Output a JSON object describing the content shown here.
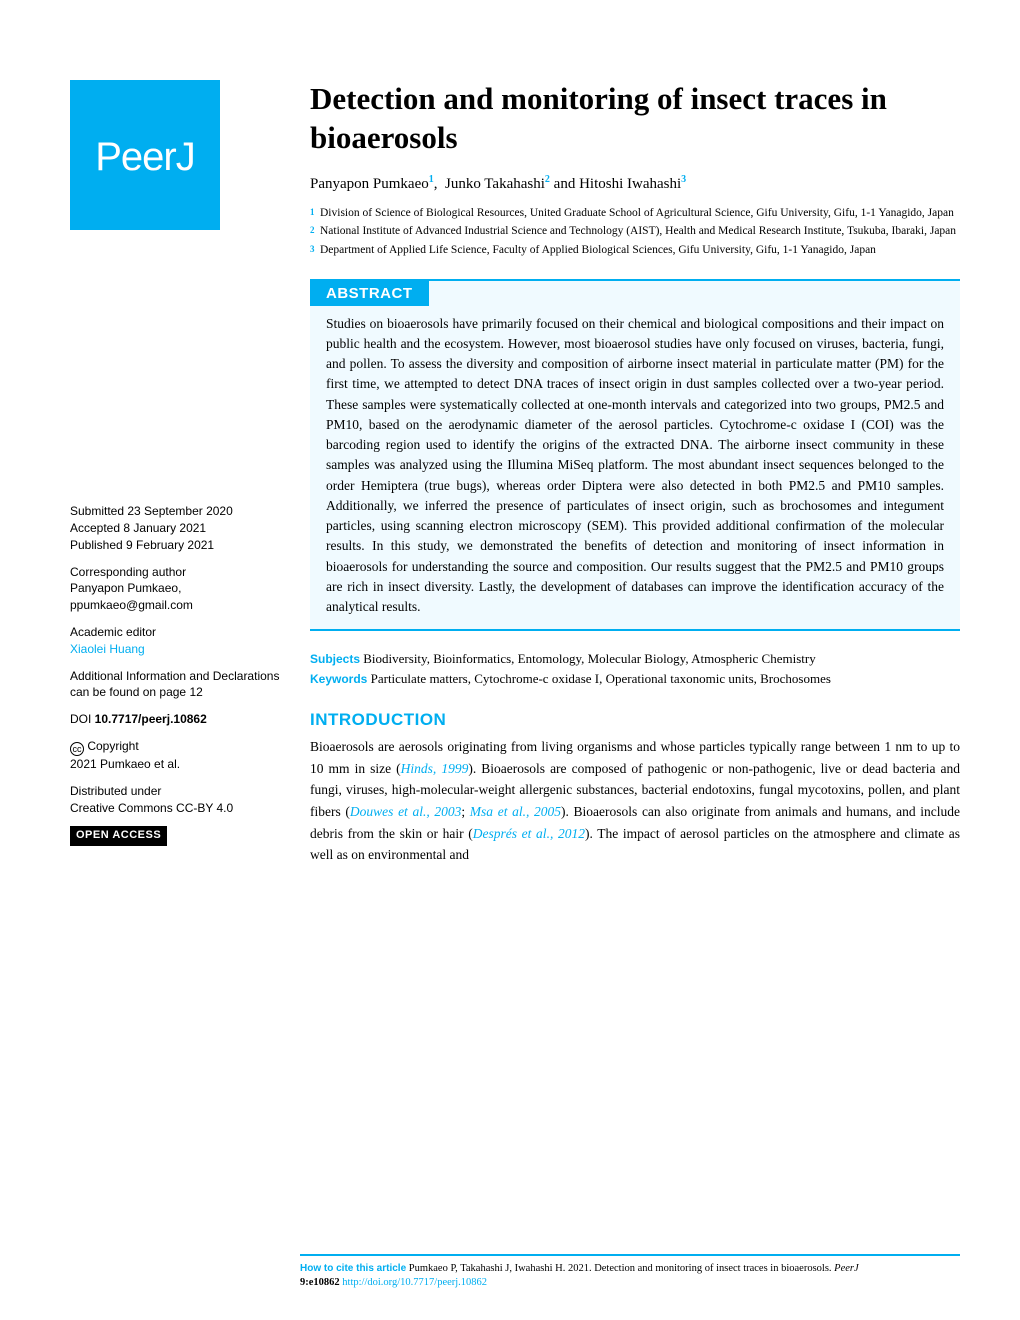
{
  "logo": "PeerJ",
  "title": "Detection and monitoring of insect traces in bioaerosols",
  "authors": [
    {
      "name": "Panyapon Pumkaeo",
      "sup": "1"
    },
    {
      "name": "Junko Takahashi",
      "sup": "2"
    },
    {
      "name": "Hitoshi Iwahashi",
      "sup": "3"
    }
  ],
  "affiliations": [
    {
      "num": "1",
      "text": "Division of Science of Biological Resources, United Graduate School of Agricultural Science, Gifu University, Gifu, 1-1 Yanagido, Japan"
    },
    {
      "num": "2",
      "text": "National Institute of Advanced Industrial Science and Technology (AIST), Health and Medical Research Institute, Tsukuba, Ibaraki, Japan"
    },
    {
      "num": "3",
      "text": "Department of Applied Life Science, Faculty of Applied Biological Sciences, Gifu University, Gifu, 1-1 Yanagido, Japan"
    }
  ],
  "abstract": {
    "header": "ABSTRACT",
    "text": "Studies on bioaerosols have primarily focused on their chemical and biological compositions and their impact on public health and the ecosystem. However, most bioaerosol studies have only focused on viruses, bacteria, fungi, and pollen. To assess the diversity and composition of airborne insect material in particulate matter (PM) for the first time, we attempted to detect DNA traces of insect origin in dust samples collected over a two-year period. These samples were systematically collected at one-month intervals and categorized into two groups, PM2.5 and PM10, based on the aerodynamic diameter of the aerosol particles. Cytochrome-c oxidase I (COI) was the barcoding region used to identify the origins of the extracted DNA. The airborne insect community in these samples was analyzed using the Illumina MiSeq platform. The most abundant insect sequences belonged to the order Hemiptera (true bugs), whereas order Diptera were also detected in both PM2.5 and PM10 samples. Additionally, we inferred the presence of particulates of insect origin, such as brochosomes and integument particles, using scanning electron microscopy (SEM). This provided additional confirmation of the molecular results. In this study, we demonstrated the benefits of detection and monitoring of insect information in bioaerosols for understanding the source and composition. Our results suggest that the PM2.5 and PM10 groups are rich in insect diversity. Lastly, the development of databases can improve the identification accuracy of the analytical results."
  },
  "subjects": "Biodiversity, Bioinformatics, Entomology, Molecular Biology, Atmospheric Chemistry",
  "keywords": "Particulate matters, Cytochrome-c oxidase I, Operational taxonomic units, Brochosomes",
  "introduction": {
    "header": "INTRODUCTION",
    "para": "Bioaerosols are aerosols originating from living organisms and whose particles typically range between 1 nm to up to 10 mm in size (",
    "cite1": "Hinds, 1999",
    "para2": "). Bioaerosols are composed of pathogenic or non-pathogenic, live or dead bacteria and fungi, viruses, high-molecular-weight allergenic substances, bacterial endotoxins, fungal mycotoxins, pollen, and plant fibers (",
    "cite2": "Douwes et al., 2003",
    "sep2": "; ",
    "cite3": "Msa et al., 2005",
    "para3": "). Bioaerosols can also originate from animals and humans, and include debris from the skin or hair (",
    "cite4": "Després et al., 2012",
    "para4": "). The impact of aerosol particles on the atmosphere and climate as well as on environmental and"
  },
  "sidebar": {
    "submitted_label": "Submitted",
    "submitted": " 23 September 2020",
    "accepted_label": "Accepted",
    "accepted": " 8 January 2021",
    "published_label": "Published",
    "published": " 9 February 2021",
    "corresponding_label": "Corresponding author",
    "corresponding": "Panyapon Pumkaeo, ppumkaeo@gmail.com",
    "editor_label": "Academic editor",
    "editor": "Xiaolei Huang",
    "additional": "Additional Information and Declarations can be found on page 12",
    "doi_label": "DOI ",
    "doi": "10.7717/peerj.10862",
    "copyright_label": " Copyright",
    "copyright": "2021 Pumkaeo et al.",
    "distributed": "Distributed under",
    "license": "Creative Commons CC-BY 4.0",
    "open_access": "OPEN ACCESS"
  },
  "footer": {
    "label": "How to cite this article",
    "text": " Pumkaeo P, Takahashi J, Iwahashi H. 2021. Detection and monitoring of insect traces in bioaerosols. ",
    "journal": "PeerJ",
    "vol": "9:e10862 ",
    "doi": "http://doi.org/10.7717/peerj.10862"
  },
  "colors": {
    "brand": "#00aef0",
    "abstract_bg": "#f0faff",
    "text": "#000000",
    "bg": "#ffffff"
  },
  "typography": {
    "title_size": 31,
    "body_size": 13.5,
    "sidebar_size": 12,
    "serif": "Georgia",
    "sans": "Arial"
  }
}
